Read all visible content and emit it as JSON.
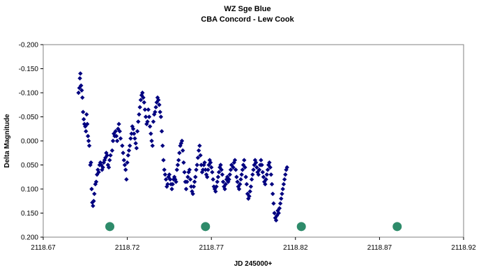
{
  "chart_data": {
    "type": "scatter",
    "title": "WZ Sge Blue",
    "subtitle": "CBA Concord - Lew Cook",
    "xlabel": "JD 245000+",
    "ylabel": "Delta Magnitude",
    "xlim": [
      2118.67,
      2118.92
    ],
    "ylim": [
      -0.2,
      0.2
    ],
    "y_inverted": true,
    "grid": false,
    "legend": "none",
    "x_ticks": [
      "2118.67",
      "2118.72",
      "2118.77",
      "2118.82",
      "2118.87",
      "2118.92"
    ],
    "y_ticks": [
      "-0.200",
      "-0.150",
      "-0.100",
      "-0.050",
      "0.000",
      "0.050",
      "0.100",
      "0.150",
      "0.200"
    ],
    "series": [
      {
        "marker": "diamond",
        "color": "#000080",
        "points": [
          [
            2118.691,
            -0.1
          ],
          [
            2118.6915,
            -0.11
          ],
          [
            2118.6918,
            -0.13
          ],
          [
            2118.6921,
            -0.14
          ],
          [
            2118.6925,
            -0.115
          ],
          [
            2118.6929,
            -0.105
          ],
          [
            2118.6933,
            -0.09
          ],
          [
            2118.6937,
            -0.06
          ],
          [
            2118.6941,
            -0.045
          ],
          [
            2118.6945,
            -0.035
          ],
          [
            2118.695,
            -0.03
          ],
          [
            2118.6954,
            -0.02
          ],
          [
            2118.6958,
            -0.055
          ],
          [
            2118.6962,
            -0.035
          ],
          [
            2118.6966,
            -0.01
          ],
          [
            2118.697,
            0.0
          ],
          [
            2118.6974,
            0.01
          ],
          [
            2118.698,
            0.05
          ],
          [
            2118.6984,
            0.045
          ],
          [
            2118.6988,
            0.1
          ],
          [
            2118.6992,
            0.128
          ],
          [
            2118.6996,
            0.135
          ],
          [
            2118.7,
            0.125
          ],
          [
            2118.7004,
            0.11
          ],
          [
            2118.701,
            0.09
          ],
          [
            2118.7015,
            0.085
          ],
          [
            2118.702,
            0.07
          ],
          [
            2118.7025,
            0.06
          ],
          [
            2118.703,
            0.065
          ],
          [
            2118.7035,
            0.05
          ],
          [
            2118.704,
            0.045
          ],
          [
            2118.7045,
            0.05
          ],
          [
            2118.705,
            0.06
          ],
          [
            2118.7055,
            0.055
          ],
          [
            2118.706,
            0.045
          ],
          [
            2118.7065,
            0.04
          ],
          [
            2118.707,
            0.035
          ],
          [
            2118.7075,
            0.025
          ],
          [
            2118.708,
            0.03
          ],
          [
            2118.7085,
            0.05
          ],
          [
            2118.709,
            0.055
          ],
          [
            2118.7095,
            0.04
          ],
          [
            2118.71,
            0.03
          ],
          [
            2118.711,
            0.02
          ],
          [
            2118.7115,
            0.0
          ],
          [
            2118.712,
            -0.015
          ],
          [
            2118.7125,
            -0.01
          ],
          [
            2118.713,
            -0.02
          ],
          [
            2118.7135,
            -0.01
          ],
          [
            2118.714,
            0.0
          ],
          [
            2118.7145,
            -0.025
          ],
          [
            2118.715,
            -0.035
          ],
          [
            2118.7155,
            -0.02
          ],
          [
            2118.716,
            -0.005
          ],
          [
            2118.717,
            0.01
          ],
          [
            2118.7175,
            0.025
          ],
          [
            2118.718,
            0.04
          ],
          [
            2118.7185,
            0.05
          ],
          [
            2118.719,
            0.06
          ],
          [
            2118.7195,
            0.08
          ],
          [
            2118.72,
            0.045
          ],
          [
            2118.7205,
            0.03
          ],
          [
            2118.721,
            0.02
          ],
          [
            2118.7215,
            0.01
          ],
          [
            2118.722,
            -0.005
          ],
          [
            2118.7225,
            -0.015
          ],
          [
            2118.723,
            -0.03
          ],
          [
            2118.7235,
            -0.025
          ],
          [
            2118.724,
            -0.015
          ],
          [
            2118.7245,
            -0.005
          ],
          [
            2118.725,
            0.005
          ],
          [
            2118.7255,
            0.015
          ],
          [
            2118.726,
            -0.02
          ],
          [
            2118.7265,
            -0.04
          ],
          [
            2118.727,
            -0.055
          ],
          [
            2118.7275,
            -0.07
          ],
          [
            2118.728,
            -0.085
          ],
          [
            2118.7285,
            -0.095
          ],
          [
            2118.729,
            -0.1
          ],
          [
            2118.7295,
            -0.09
          ],
          [
            2118.73,
            -0.08
          ],
          [
            2118.7305,
            -0.065
          ],
          [
            2118.731,
            -0.05
          ],
          [
            2118.7315,
            -0.035
          ],
          [
            2118.732,
            -0.04
          ],
          [
            2118.7325,
            -0.065
          ],
          [
            2118.733,
            -0.05
          ],
          [
            2118.7335,
            -0.03
          ],
          [
            2118.734,
            -0.015
          ],
          [
            2118.7345,
            0.0
          ],
          [
            2118.735,
            0.01
          ],
          [
            2118.7355,
            -0.04
          ],
          [
            2118.736,
            -0.055
          ],
          [
            2118.7365,
            -0.06
          ],
          [
            2118.737,
            -0.07
          ],
          [
            2118.7375,
            -0.08
          ],
          [
            2118.738,
            -0.09
          ],
          [
            2118.7385,
            -0.085
          ],
          [
            2118.739,
            -0.075
          ],
          [
            2118.7395,
            -0.06
          ],
          [
            2118.74,
            -0.05
          ],
          [
            2118.7405,
            -0.02
          ],
          [
            2118.741,
            0.01
          ],
          [
            2118.7415,
            0.04
          ],
          [
            2118.742,
            0.06
          ],
          [
            2118.7425,
            0.07
          ],
          [
            2118.743,
            0.08
          ],
          [
            2118.7435,
            0.095
          ],
          [
            2118.744,
            0.09
          ],
          [
            2118.7445,
            0.075
          ],
          [
            2118.745,
            0.07
          ],
          [
            2118.7455,
            0.08
          ],
          [
            2118.746,
            0.09
          ],
          [
            2118.7465,
            0.1
          ],
          [
            2118.747,
            0.09
          ],
          [
            2118.7475,
            0.08
          ],
          [
            2118.748,
            0.075
          ],
          [
            2118.7485,
            0.08
          ],
          [
            2118.749,
            0.085
          ],
          [
            2118.7495,
            0.06
          ],
          [
            2118.75,
            0.05
          ],
          [
            2118.7505,
            0.04
          ],
          [
            2118.751,
            0.025
          ],
          [
            2118.7515,
            0.01
          ],
          [
            2118.752,
            0.005
          ],
          [
            2118.7525,
            0.0
          ],
          [
            2118.753,
            0.02
          ],
          [
            2118.7535,
            0.045
          ],
          [
            2118.754,
            0.065
          ],
          [
            2118.7545,
            0.085
          ],
          [
            2118.755,
            0.1
          ],
          [
            2118.7555,
            0.085
          ],
          [
            2118.756,
            0.075
          ],
          [
            2118.7565,
            0.065
          ],
          [
            2118.757,
            0.06
          ],
          [
            2118.7575,
            0.08
          ],
          [
            2118.758,
            0.095
          ],
          [
            2118.7585,
            0.105
          ],
          [
            2118.759,
            0.11
          ],
          [
            2118.7595,
            0.095
          ],
          [
            2118.76,
            0.085
          ],
          [
            2118.7605,
            0.075
          ],
          [
            2118.761,
            0.06
          ],
          [
            2118.7615,
            0.05
          ],
          [
            2118.762,
            0.035
          ],
          [
            2118.7625,
            0.02
          ],
          [
            2118.763,
            0.01
          ],
          [
            2118.7635,
            0.03
          ],
          [
            2118.764,
            0.05
          ],
          [
            2118.7645,
            0.065
          ],
          [
            2118.765,
            0.06
          ],
          [
            2118.7655,
            0.05
          ],
          [
            2118.766,
            0.045
          ],
          [
            2118.7665,
            0.06
          ],
          [
            2118.767,
            0.07
          ],
          [
            2118.7675,
            0.075
          ],
          [
            2118.768,
            0.06
          ],
          [
            2118.7685,
            0.05
          ],
          [
            2118.769,
            0.04
          ],
          [
            2118.7695,
            0.045
          ],
          [
            2118.77,
            0.055
          ],
          [
            2118.7705,
            0.065
          ],
          [
            2118.771,
            0.08
          ],
          [
            2118.7715,
            0.095
          ],
          [
            2118.772,
            0.1
          ],
          [
            2118.7725,
            0.105
          ],
          [
            2118.773,
            0.095
          ],
          [
            2118.7735,
            0.085
          ],
          [
            2118.774,
            0.075
          ],
          [
            2118.7745,
            0.065
          ],
          [
            2118.775,
            0.055
          ],
          [
            2118.7755,
            0.05
          ],
          [
            2118.776,
            0.06
          ],
          [
            2118.7765,
            0.07
          ],
          [
            2118.777,
            0.085
          ],
          [
            2118.7775,
            0.095
          ],
          [
            2118.778,
            0.1
          ],
          [
            2118.7785,
            0.09
          ],
          [
            2118.779,
            0.08
          ],
          [
            2118.7795,
            0.075
          ],
          [
            2118.78,
            0.085
          ],
          [
            2118.7805,
            0.08
          ],
          [
            2118.781,
            0.07
          ],
          [
            2118.7815,
            0.06
          ],
          [
            2118.782,
            0.05
          ],
          [
            2118.783,
            0.055
          ],
          [
            2118.7835,
            0.045
          ],
          [
            2118.784,
            0.04
          ],
          [
            2118.7845,
            0.06
          ],
          [
            2118.785,
            0.075
          ],
          [
            2118.7855,
            0.085
          ],
          [
            2118.786,
            0.095
          ],
          [
            2118.7865,
            0.1
          ],
          [
            2118.787,
            0.09
          ],
          [
            2118.7875,
            0.08
          ],
          [
            2118.788,
            0.07
          ],
          [
            2118.7885,
            0.06
          ],
          [
            2118.789,
            0.05
          ],
          [
            2118.7895,
            0.04
          ],
          [
            2118.79,
            0.055
          ],
          [
            2118.7905,
            0.075
          ],
          [
            2118.791,
            0.09
          ],
          [
            2118.7915,
            0.11
          ],
          [
            2118.792,
            0.12
          ],
          [
            2118.7925,
            0.115
          ],
          [
            2118.793,
            0.105
          ],
          [
            2118.7935,
            0.095
          ],
          [
            2118.794,
            0.08
          ],
          [
            2118.7945,
            0.07
          ],
          [
            2118.795,
            0.06
          ],
          [
            2118.7955,
            0.05
          ],
          [
            2118.796,
            0.04
          ],
          [
            2118.7965,
            0.045
          ],
          [
            2118.797,
            0.055
          ],
          [
            2118.7975,
            0.065
          ],
          [
            2118.798,
            0.07
          ],
          [
            2118.7985,
            0.06
          ],
          [
            2118.799,
            0.05
          ],
          [
            2118.7995,
            0.04
          ],
          [
            2118.8,
            0.05
          ],
          [
            2118.8005,
            0.065
          ],
          [
            2118.801,
            0.075
          ],
          [
            2118.8015,
            0.085
          ],
          [
            2118.802,
            0.09
          ],
          [
            2118.8025,
            0.08
          ],
          [
            2118.803,
            0.07
          ],
          [
            2118.8035,
            0.06
          ],
          [
            2118.804,
            0.05
          ],
          [
            2118.8045,
            0.045
          ],
          [
            2118.805,
            0.055
          ],
          [
            2118.8055,
            0.07
          ],
          [
            2118.806,
            0.09
          ],
          [
            2118.8065,
            0.11
          ],
          [
            2118.807,
            0.13
          ],
          [
            2118.8075,
            0.15
          ],
          [
            2118.808,
            0.16
          ],
          [
            2118.8085,
            0.165
          ],
          [
            2118.809,
            0.155
          ],
          [
            2118.8095,
            0.145
          ],
          [
            2118.81,
            0.15
          ],
          [
            2118.8105,
            0.14
          ],
          [
            2118.811,
            0.13
          ],
          [
            2118.8115,
            0.12
          ],
          [
            2118.812,
            0.11
          ],
          [
            2118.8125,
            0.1
          ],
          [
            2118.813,
            0.09
          ],
          [
            2118.8135,
            0.08
          ],
          [
            2118.814,
            0.07
          ],
          [
            2118.8145,
            0.06
          ],
          [
            2118.815,
            0.055
          ]
        ]
      },
      {
        "marker": "circle",
        "color": "#2e8b6a",
        "points": [
          [
            2118.7096,
            0.178
          ],
          [
            2118.7665,
            0.178
          ],
          [
            2118.8235,
            0.178
          ],
          [
            2118.8805,
            0.178
          ]
        ]
      }
    ]
  }
}
